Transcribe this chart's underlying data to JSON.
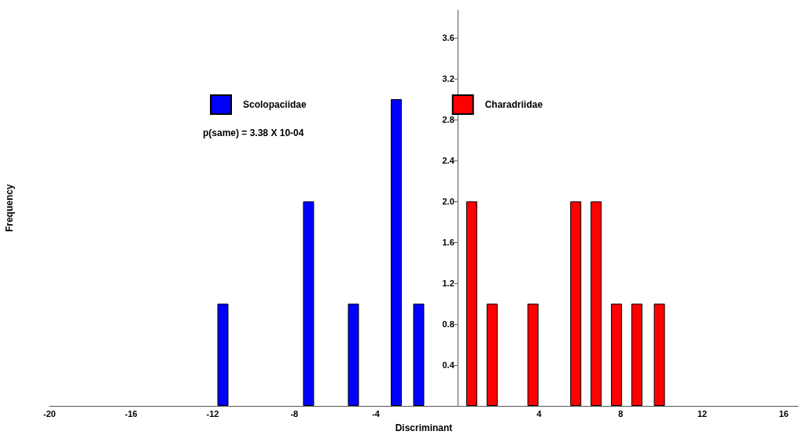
{
  "chart_data": {
    "type": "bar",
    "xlabel": "Discriminant",
    "ylabel": "Frequency",
    "annotations": [
      "p(same) = 3.38 X 10-04"
    ],
    "series": [
      {
        "name": "Scolopaciidae",
        "color": "#0000ff",
        "x": [
          -11.5,
          -7.3,
          -5.1,
          -3.0,
          -1.9
        ],
        "values": [
          1,
          2,
          1,
          3,
          1
        ]
      },
      {
        "name": "Charadriidae",
        "color": "#ff0000",
        "x": [
          0.7,
          1.7,
          3.7,
          5.8,
          6.8,
          7.8,
          8.8,
          9.9
        ],
        "values": [
          2,
          1,
          1,
          2,
          2,
          1,
          1,
          1
        ]
      }
    ],
    "xlim": [
      -20,
      16.7
    ],
    "xticks": [
      -20,
      -16,
      -12,
      -8,
      -4,
      4,
      8,
      12,
      16
    ],
    "ylim": [
      0,
      3.87
    ],
    "yticks": [
      {
        "value": 0,
        "label": null
      },
      0.4,
      0.8,
      1.2,
      1.6,
      {
        "value": 2,
        "label": "2.0"
      },
      2.4,
      2.8,
      3.2,
      3.6
    ],
    "grid": false,
    "legend": "top"
  }
}
